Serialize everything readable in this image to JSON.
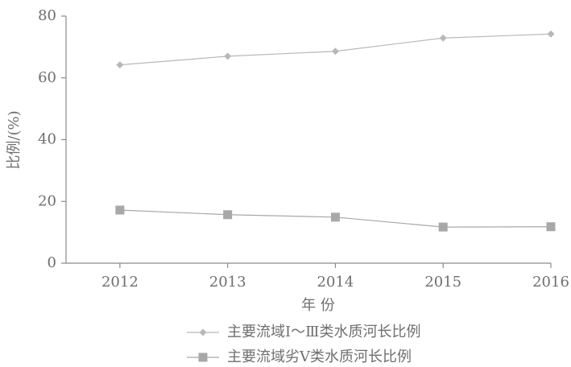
{
  "chart_data": {
    "type": "line",
    "x_label": "年 份",
    "y_label": "比例/(%)",
    "categories": [
      "2012",
      "2013",
      "2014",
      "2015",
      "2016"
    ],
    "series": [
      {
        "name": "主要流域Ⅰ～Ⅲ类水质河长比例",
        "color": "#b8b8b8",
        "marker": "diamond",
        "values": [
          64.2,
          67.0,
          68.6,
          72.9,
          74.2
        ]
      },
      {
        "name": "主要流域劣Ⅴ类水质河长比例",
        "color": "#a8a8a8",
        "marker": "square",
        "values": [
          17.2,
          15.7,
          14.9,
          11.7,
          11.8
        ]
      }
    ],
    "ylim": [
      0,
      80
    ],
    "yticks": [
      0,
      20,
      40,
      60,
      80
    ],
    "legend": "bottom"
  }
}
